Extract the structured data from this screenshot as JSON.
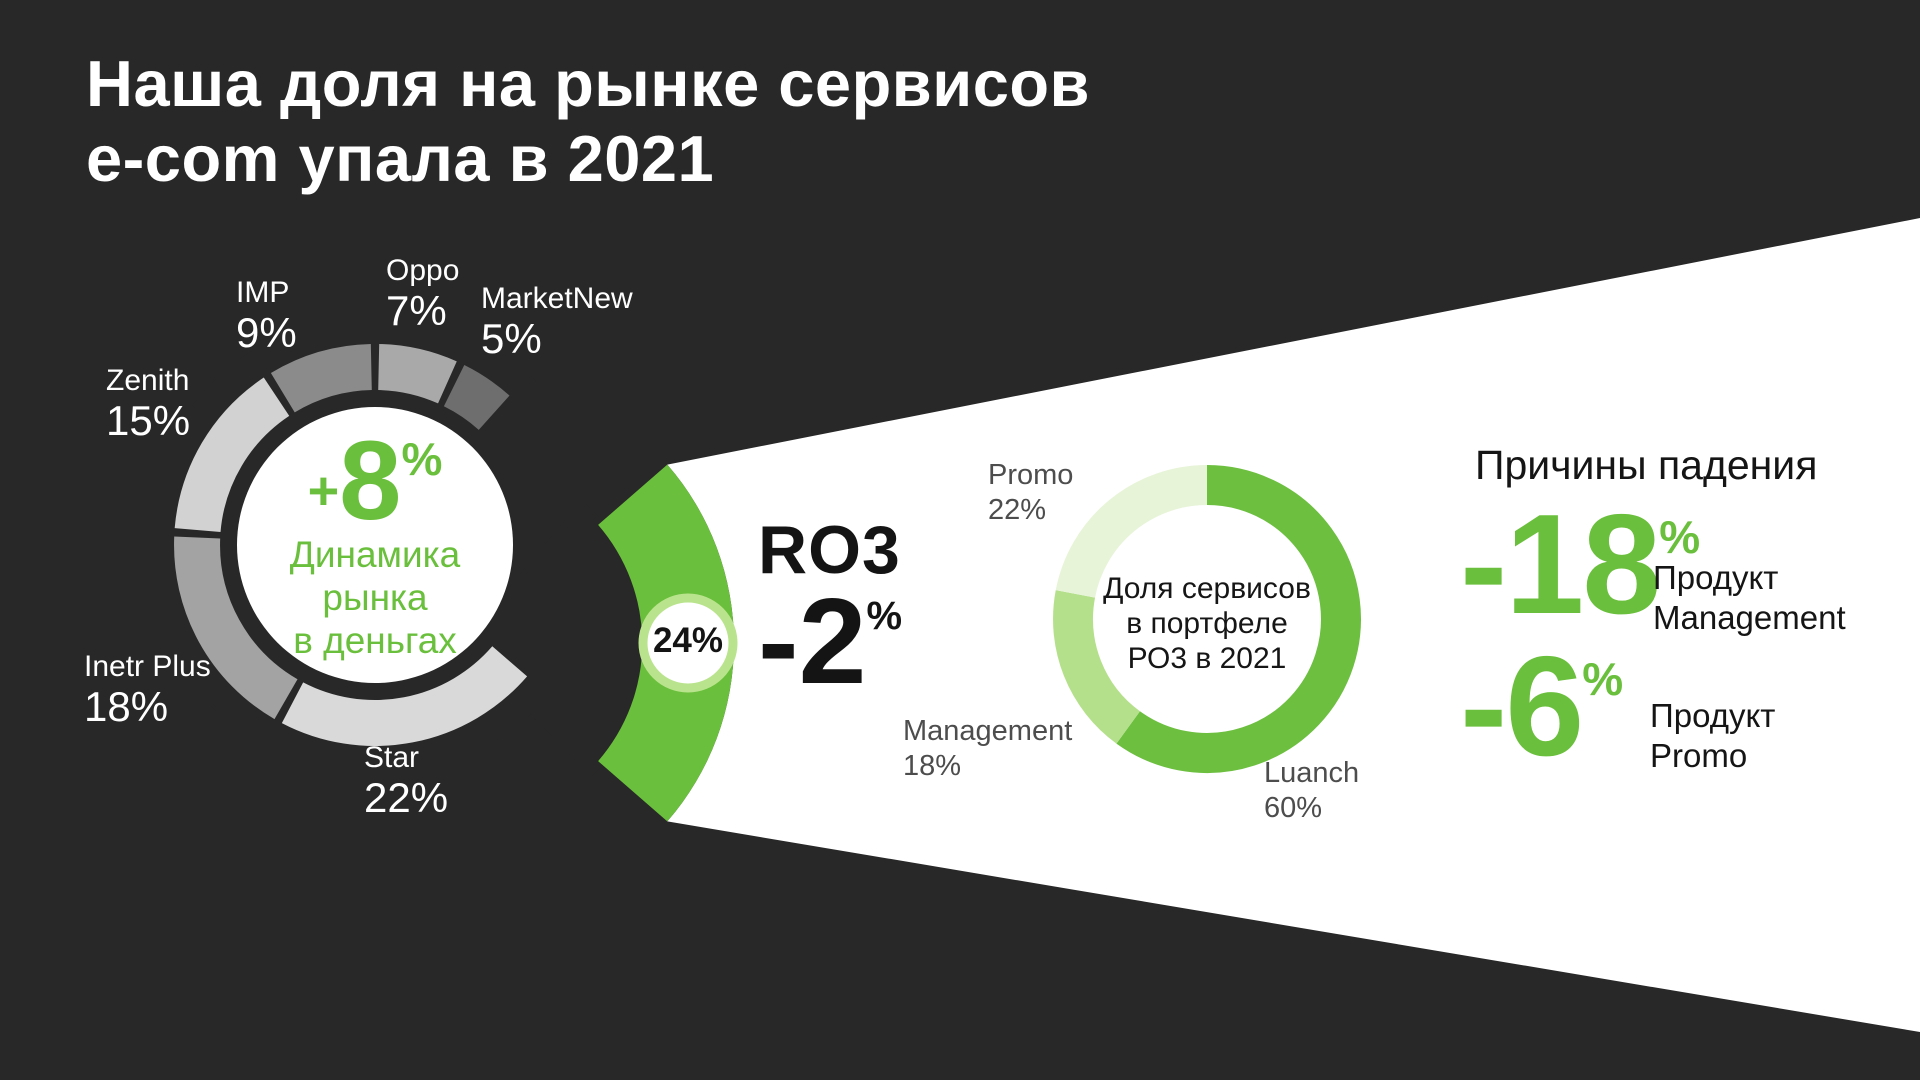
{
  "title": {
    "line1": "Наша доля на рынке сервисов",
    "line2": "e-com упала в 2021"
  },
  "colors": {
    "background": "#282828",
    "beam": "#ffffff",
    "accent_green": "#6abf3c",
    "badge_ring": "#b9e48d",
    "label_gray": "#4d4d4d"
  },
  "chart1": {
    "segments": [
      {
        "label": "Oppo",
        "value": 7,
        "display": "7%",
        "color": "#a9a9a9"
      },
      {
        "label": "MarketNew",
        "value": 5,
        "display": "5%",
        "color": "#6e6e6e"
      },
      {
        "label": "РО3",
        "value": 24,
        "display": "24%",
        "color": "#6abf3c",
        "highlight": true
      },
      {
        "label": "Star",
        "value": 22,
        "display": "22%",
        "color": "#d9d9d9"
      },
      {
        "label": "Inetr Plus",
        "value": 18,
        "display": "18%",
        "color": "#a3a3a3"
      },
      {
        "label": "Zenith",
        "value": 15,
        "display": "15%",
        "color": "#d2d2d2"
      },
      {
        "label": "IMP",
        "value": 9,
        "display": "9%",
        "color": "#8b8b8b"
      }
    ],
    "center": {
      "plus": "+",
      "value": "8",
      "pct": "%",
      "line1": "Динамика рынка",
      "line2": "в деньгах"
    },
    "callout": {
      "badge": "24%",
      "tag": "RO3",
      "value": "-2",
      "pct": "%"
    }
  },
  "chart2": {
    "segments": [
      {
        "label": "Luanch",
        "value": 60,
        "display": "60%",
        "color": "#6cbf3f"
      },
      {
        "label": "Management",
        "value": 18,
        "display": "18%",
        "color": "#b5e08b"
      },
      {
        "label": "Promo",
        "value": 22,
        "display": "22%",
        "color": "#e7f4d8"
      }
    ],
    "center": {
      "0": "Доля сервисов",
      "1": "в портфеле",
      "2": "РО3 в 2021"
    }
  },
  "reasons": {
    "heading": "Причины падения",
    "items": [
      {
        "value": "-18",
        "pct": "%",
        "label1": "Продукт",
        "label2": "Management"
      },
      {
        "value": "-6",
        "pct": "%",
        "label1": "Продукт",
        "label2": "Promo"
      }
    ]
  },
  "chart_data": [
    {
      "type": "donut",
      "title": "Доля на рынке сервисов e-com, 2021",
      "categories": [
        "Oppo",
        "MarketNew",
        "РО3",
        "Star",
        "Inetr Plus",
        "Zenith",
        "IMP"
      ],
      "values": [
        7,
        5,
        24,
        22,
        18,
        15,
        9
      ],
      "highlighted_category": "РО3",
      "center_annotation": "+8% Динамика рынка в деньгах",
      "callout_annotation": "РО3 24%, динамика -2%"
    },
    {
      "type": "donut",
      "title": "Доля сервисов в портфеле РО3 в 2021",
      "categories": [
        "Luanch",
        "Management",
        "Promo"
      ],
      "values": [
        60,
        18,
        22
      ]
    }
  ]
}
